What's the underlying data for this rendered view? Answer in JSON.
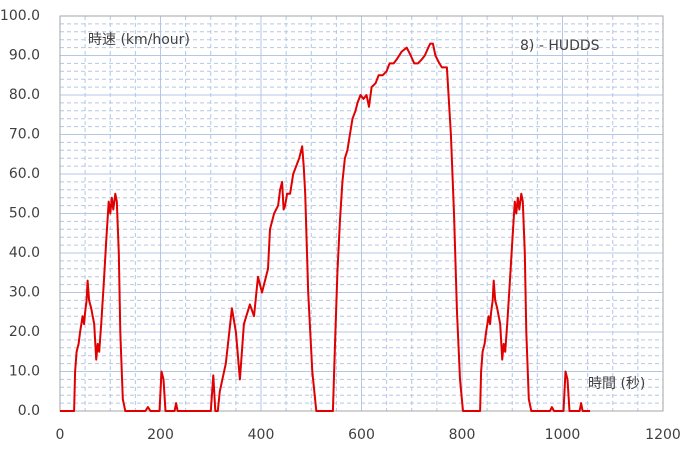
{
  "chart_data": {
    "type": "line",
    "ylabel": "時速 (km/hour)",
    "xlabel": "時間 (秒)",
    "annotation": "8) - HUDDS",
    "xlim": [
      0,
      1200
    ],
    "ylim": [
      0,
      100
    ],
    "xticks": [
      0,
      200,
      400,
      600,
      800,
      1000,
      1200
    ],
    "yticks": [
      {
        "value": 0,
        "label": "0.0"
      },
      {
        "value": 10,
        "label": "10.0"
      },
      {
        "value": 20,
        "label": "20.0"
      },
      {
        "value": 30,
        "label": "30.0"
      },
      {
        "value": 40,
        "label": "40.0"
      },
      {
        "value": 50,
        "label": "50.0"
      },
      {
        "value": 60,
        "label": "60.0"
      },
      {
        "value": 70,
        "label": "70.0"
      },
      {
        "value": 80,
        "label": "80.0"
      },
      {
        "value": 90,
        "label": "90.0"
      },
      {
        "value": 100,
        "label": "100.0"
      }
    ],
    "xminorticks": [
      50,
      100,
      150,
      250,
      300,
      350,
      450,
      500,
      550,
      650,
      700,
      750,
      850,
      900,
      950,
      1050,
      1100,
      1150
    ],
    "yminorticks": [
      2,
      4,
      6,
      8,
      12,
      14,
      16,
      18,
      22,
      24,
      26,
      28,
      32,
      34,
      36,
      38,
      42,
      44,
      46,
      48,
      52,
      54,
      56,
      58,
      62,
      64,
      66,
      68,
      72,
      74,
      76,
      78,
      82,
      84,
      86,
      88,
      92,
      94,
      96,
      98
    ],
    "grid": true,
    "grid_color": "#b4c7e7",
    "series": [
      {
        "color": "#e00000",
        "x": [
          0,
          28,
          30,
          33,
          37,
          40,
          45,
          48,
          50,
          53,
          55,
          58,
          62,
          65,
          68,
          72,
          75,
          78,
          82,
          87,
          92,
          97,
          100,
          103,
          106,
          110,
          113,
          117,
          120,
          125,
          130,
          170,
          175,
          180,
          198,
          202,
          206,
          210,
          228,
          231,
          234,
          300,
          305,
          309,
          314,
          318,
          330,
          342,
          350,
          358,
          366,
          378,
          386,
          394,
          402,
          408,
          414,
          418,
          426,
          434,
          438,
          442,
          445,
          448,
          452,
          458,
          464,
          470,
          476,
          482,
          485,
          488,
          494,
          502,
          510,
          543,
          548,
          552,
          557,
          562,
          567,
          572,
          577,
          582,
          588,
          592,
          598,
          604,
          610,
          615,
          620,
          628,
          634,
          642,
          650,
          656,
          664,
          670,
          680,
          690,
          698,
          705,
          712,
          720,
          726,
          733,
          737,
          742,
          747,
          755,
          760,
          770,
          778,
          784,
          790,
          796,
          802,
          836,
          838,
          841,
          845,
          848,
          853,
          856,
          858,
          861,
          863,
          866,
          870,
          873,
          876,
          880,
          883,
          886,
          890,
          895,
          900,
          905,
          908,
          911,
          914,
          918,
          921,
          925,
          928,
          933,
          938,
          975,
          979,
          983,
          1002,
          1006,
          1010,
          1014,
          1034,
          1037,
          1040,
          1055
        ],
        "values": [
          0,
          0,
          10,
          15,
          17,
          20,
          24,
          22,
          25,
          28,
          33,
          28,
          26,
          24,
          22,
          13,
          17,
          15,
          22,
          32,
          43,
          53,
          50,
          54,
          51,
          55,
          53,
          40,
          20,
          3,
          0,
          0,
          1,
          0,
          0,
          10,
          8,
          0,
          0,
          2,
          0,
          0,
          9,
          0,
          0,
          5,
          12,
          26,
          20,
          8,
          22,
          27,
          24,
          34,
          30,
          33,
          36,
          46,
          50,
          52,
          56,
          58,
          51,
          52,
          55,
          55,
          60,
          62,
          64,
          67,
          62,
          55,
          30,
          10,
          0,
          0,
          20,
          35,
          48,
          58,
          64,
          66,
          70,
          74,
          76,
          78,
          80,
          79,
          80,
          77,
          82,
          83,
          85,
          85,
          86,
          88,
          88,
          89,
          91,
          92,
          90,
          88,
          88,
          89,
          90,
          92,
          93,
          93,
          90,
          88,
          87,
          87,
          70,
          50,
          25,
          8,
          0,
          0,
          10,
          15,
          17,
          20,
          24,
          22,
          25,
          28,
          33,
          28,
          26,
          24,
          22,
          13,
          17,
          15,
          22,
          32,
          43,
          53,
          50,
          54,
          51,
          55,
          53,
          40,
          20,
          3,
          0,
          0,
          1,
          0,
          0,
          10,
          8,
          0,
          0,
          2,
          0,
          0
        ]
      }
    ]
  }
}
